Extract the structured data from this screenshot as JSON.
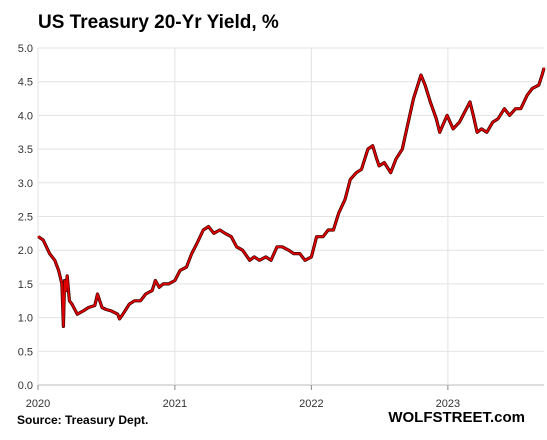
{
  "chart_data": {
    "type": "line",
    "title": "US Treasury 20-Yr Yield, %",
    "source": "Source: Treasury Dept.",
    "credit": "WOLFSTREET.com",
    "xlabel": "",
    "ylabel": "",
    "ylim": [
      0.0,
      5.0
    ],
    "yticks": [
      "0.0",
      "0.5",
      "1.0",
      "1.5",
      "2.0",
      "2.5",
      "3.0",
      "3.5",
      "4.0",
      "4.5",
      "5.0"
    ],
    "xticks": [
      "2020",
      "2021",
      "2022",
      "2023"
    ],
    "xlim": [
      "2020-01-01",
      "2023-09-15"
    ],
    "grid": true,
    "line_color": "#e00000",
    "series": [
      {
        "x": [
          "2020-01-02",
          "2020-01-15",
          "2020-02-01",
          "2020-02-15",
          "2020-02-25",
          "2020-03-05",
          "2020-03-09",
          "2020-03-12",
          "2020-03-16",
          "2020-03-19",
          "2020-03-25",
          "2020-04-01",
          "2020-04-15",
          "2020-05-01",
          "2020-05-15",
          "2020-06-01",
          "2020-06-08",
          "2020-06-20",
          "2020-07-01",
          "2020-07-15",
          "2020-08-01",
          "2020-08-06",
          "2020-08-15",
          "2020-09-01",
          "2020-09-15",
          "2020-10-01",
          "2020-10-15",
          "2020-11-01",
          "2020-11-10",
          "2020-11-20",
          "2020-12-01",
          "2020-12-15",
          "2021-01-01",
          "2021-01-15",
          "2021-02-01",
          "2021-02-15",
          "2021-03-01",
          "2021-03-18",
          "2021-04-01",
          "2021-04-15",
          "2021-05-01",
          "2021-05-15",
          "2021-06-01",
          "2021-06-15",
          "2021-07-01",
          "2021-07-20",
          "2021-08-01",
          "2021-08-15",
          "2021-09-01",
          "2021-09-15",
          "2021-10-01",
          "2021-10-15",
          "2021-11-01",
          "2021-11-15",
          "2021-12-01",
          "2021-12-15",
          "2022-01-01",
          "2022-01-15",
          "2022-02-01",
          "2022-02-15",
          "2022-03-01",
          "2022-03-15",
          "2022-04-01",
          "2022-04-15",
          "2022-05-01",
          "2022-05-15",
          "2022-06-01",
          "2022-06-14",
          "2022-06-25",
          "2022-07-01",
          "2022-07-15",
          "2022-08-01",
          "2022-08-15",
          "2022-09-01",
          "2022-09-15",
          "2022-10-01",
          "2022-10-21",
          "2022-11-01",
          "2022-11-15",
          "2022-12-01",
          "2022-12-10",
          "2022-12-30",
          "2023-01-15",
          "2023-02-01",
          "2023-02-15",
          "2023-03-01",
          "2023-03-10",
          "2023-03-20",
          "2023-04-01",
          "2023-04-15",
          "2023-05-01",
          "2023-05-15",
          "2023-06-01",
          "2023-06-15",
          "2023-07-01",
          "2023-07-15",
          "2023-08-01",
          "2023-08-15",
          "2023-09-01",
          "2023-09-10",
          "2023-09-15"
        ],
        "values": [
          2.2,
          2.15,
          1.95,
          1.85,
          1.7,
          1.5,
          0.87,
          1.55,
          1.4,
          1.62,
          1.25,
          1.2,
          1.05,
          1.1,
          1.15,
          1.18,
          1.35,
          1.15,
          1.12,
          1.1,
          1.05,
          0.98,
          1.05,
          1.2,
          1.25,
          1.25,
          1.35,
          1.4,
          1.55,
          1.45,
          1.5,
          1.5,
          1.55,
          1.7,
          1.75,
          1.95,
          2.1,
          2.3,
          2.35,
          2.25,
          2.3,
          2.25,
          2.2,
          2.05,
          2.0,
          1.85,
          1.9,
          1.85,
          1.9,
          1.85,
          2.05,
          2.05,
          2.0,
          1.95,
          1.95,
          1.85,
          1.9,
          2.2,
          2.2,
          2.3,
          2.3,
          2.55,
          2.75,
          3.05,
          3.15,
          3.2,
          3.5,
          3.55,
          3.35,
          3.25,
          3.3,
          3.15,
          3.35,
          3.5,
          3.85,
          4.25,
          4.6,
          4.45,
          4.2,
          3.95,
          3.75,
          4.0,
          3.8,
          3.9,
          4.05,
          4.2,
          4.0,
          3.75,
          3.8,
          3.75,
          3.9,
          3.95,
          4.1,
          4.0,
          4.1,
          4.1,
          4.3,
          4.4,
          4.45,
          4.6,
          4.7
        ]
      }
    ]
  }
}
